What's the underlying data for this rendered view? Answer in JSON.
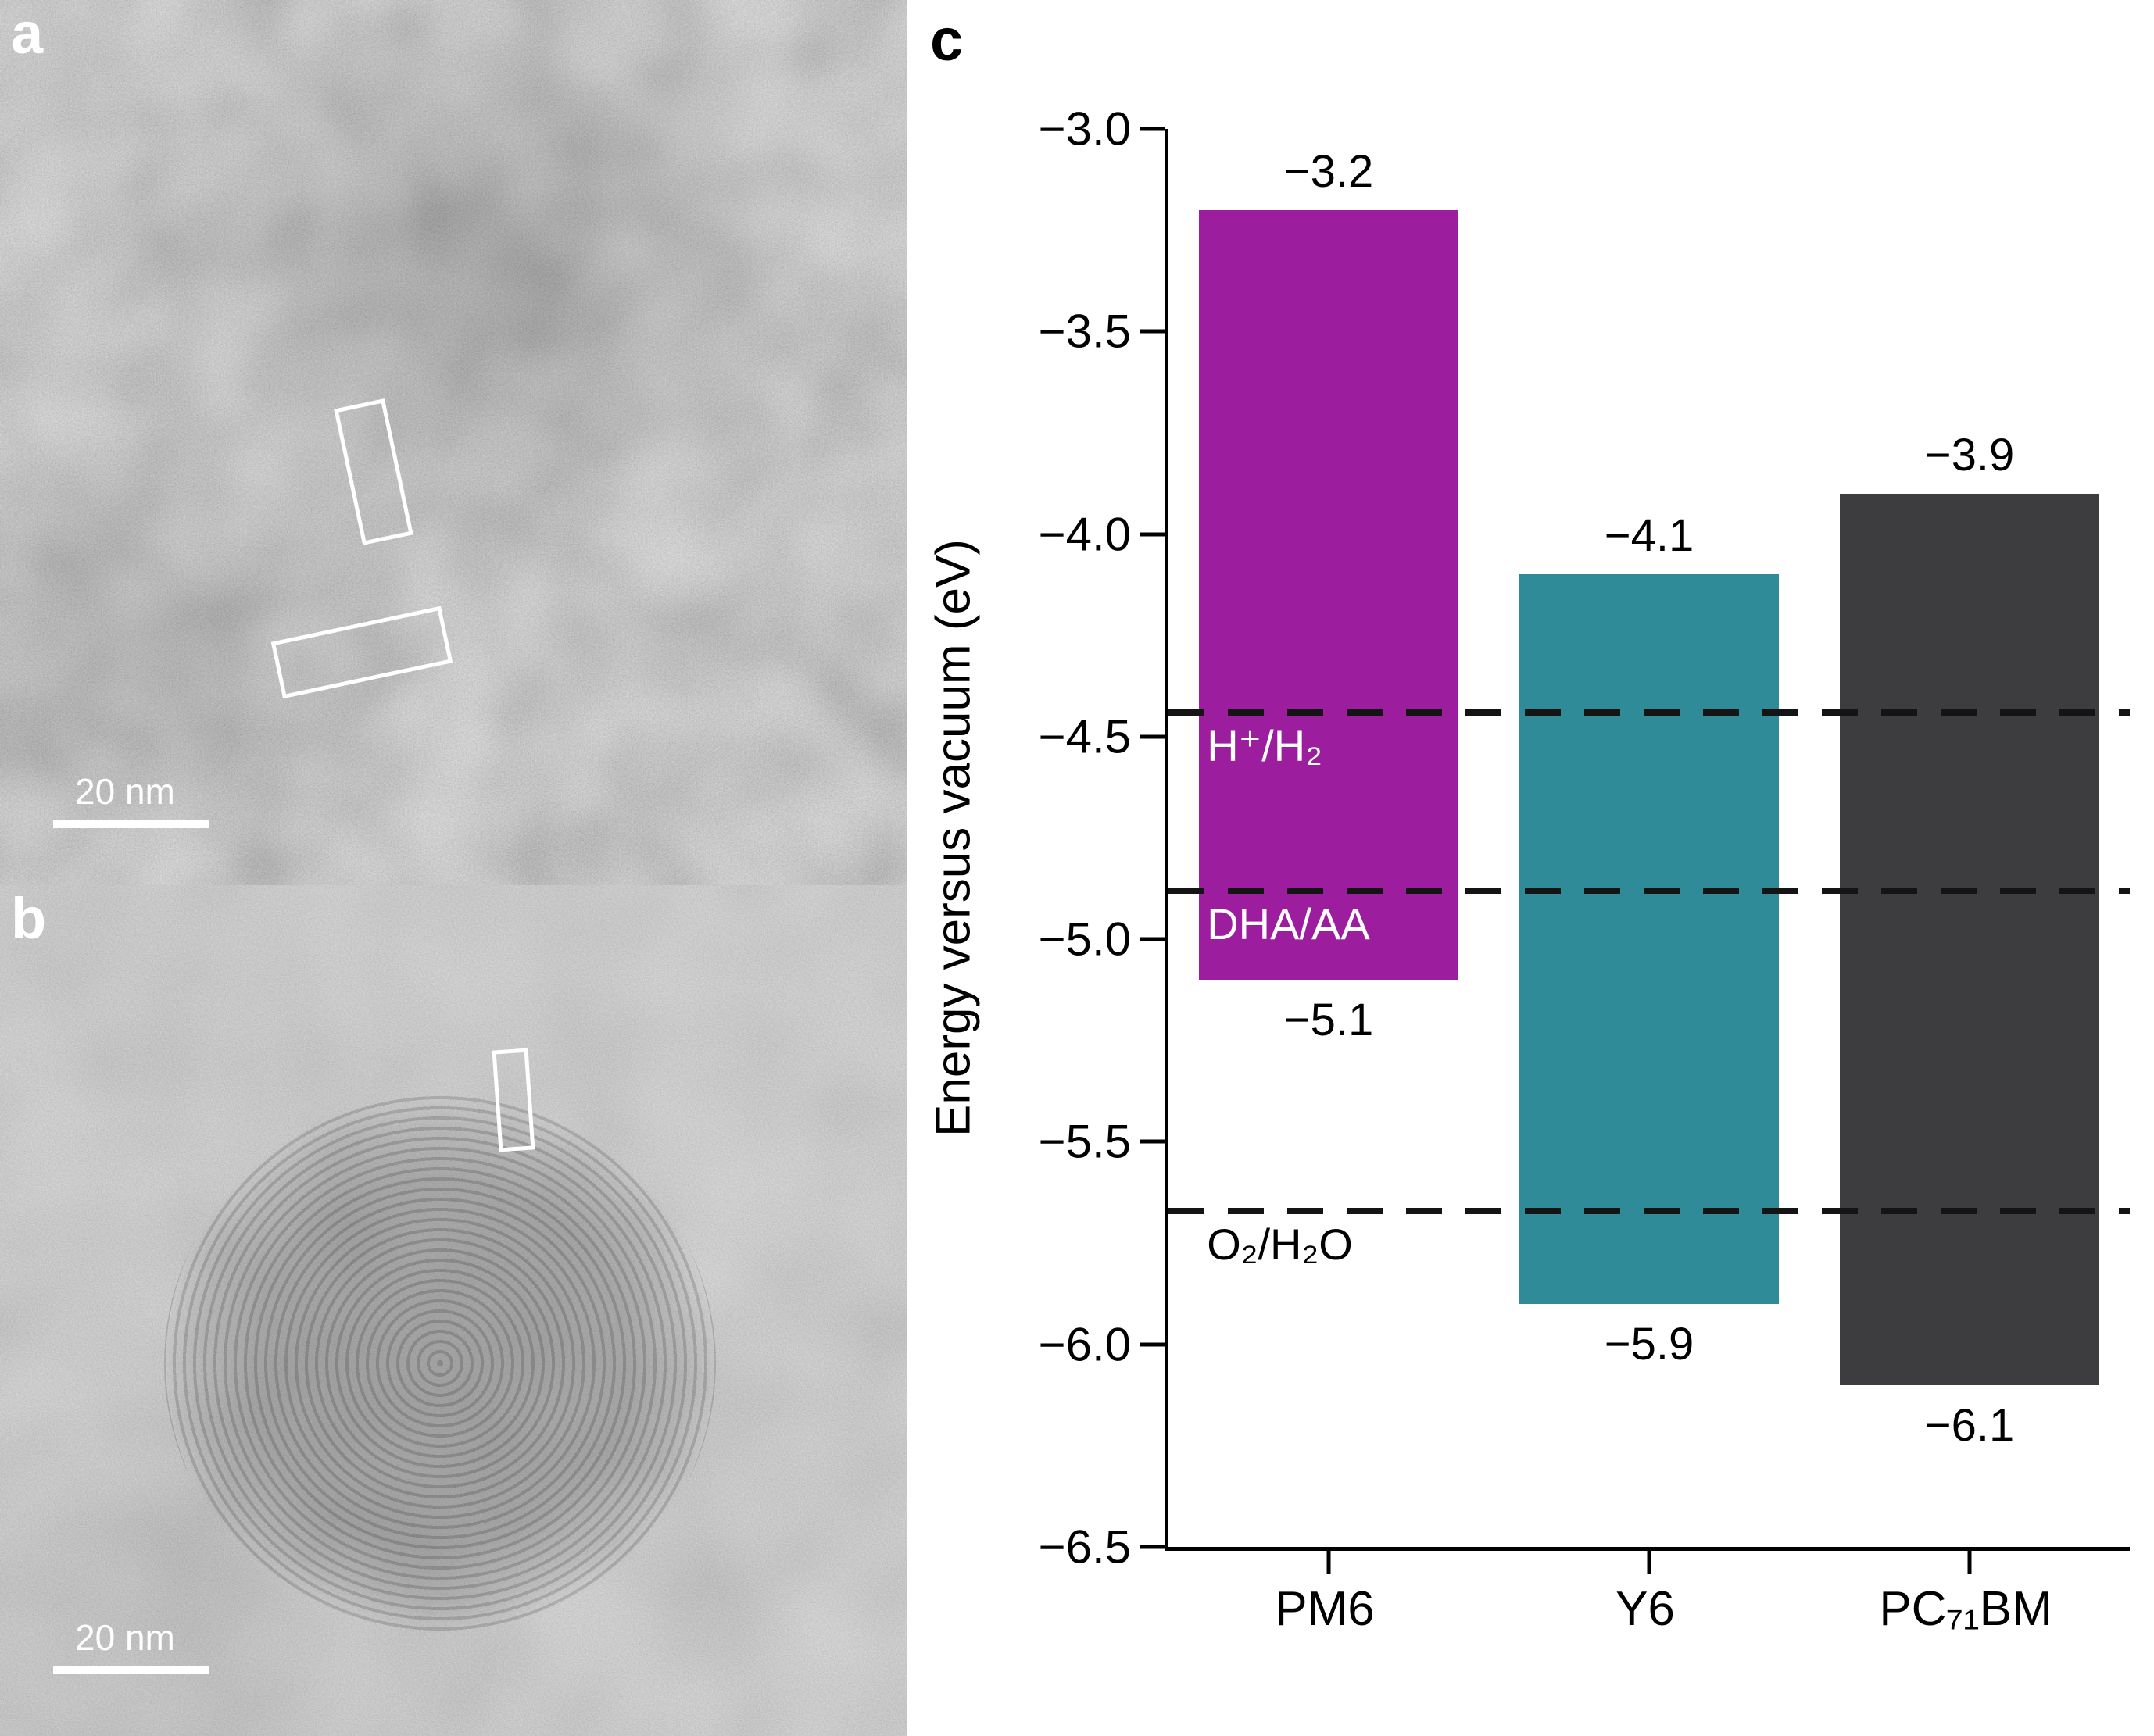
{
  "figure": {
    "panel_a": {
      "label": "a",
      "scale_bar_text": "20 nm"
    },
    "panel_b": {
      "label": "b",
      "scale_bar_text": "20 nm"
    },
    "panel_c": {
      "label": "c"
    }
  },
  "chart_data": {
    "type": "bar",
    "title": "",
    "ylabel": "Energy versus vacuum (eV)",
    "ylim": [
      -6.5,
      -3.0
    ],
    "y_ticks": [
      {
        "value": -3.0,
        "label": "−3.0"
      },
      {
        "value": -3.5,
        "label": "−3.5"
      },
      {
        "value": -4.0,
        "label": "−4.0"
      },
      {
        "value": -4.5,
        "label": "−4.5"
      },
      {
        "value": -5.0,
        "label": "−5.0"
      },
      {
        "value": -5.5,
        "label": "−5.5"
      },
      {
        "value": -6.0,
        "label": "−6.0"
      },
      {
        "value": -6.5,
        "label": "−6.5"
      }
    ],
    "categories": [
      "PM6",
      "Y6",
      "PC₇₁BM"
    ],
    "series": [
      {
        "name": "PM6",
        "top_energy": -3.2,
        "bottom_energy": -5.1,
        "top_label": "−3.2",
        "bottom_label": "−5.1",
        "color": "#9c1e9f"
      },
      {
        "name": "Y6",
        "top_energy": -4.1,
        "bottom_energy": -5.9,
        "top_label": "−4.1",
        "bottom_label": "−5.9",
        "color": "#2f8b97"
      },
      {
        "name": "PC₇₁BM",
        "top_energy": -3.9,
        "bottom_energy": -6.1,
        "top_label": "−3.9",
        "bottom_label": "−6.1",
        "color": "#3d3d40"
      }
    ],
    "reference_lines": [
      {
        "value": -4.44,
        "label": "H⁺/H₂",
        "label_color": "#ffffff"
      },
      {
        "value": -4.88,
        "label": "DHA/AA",
        "label_color": "#ffffff"
      },
      {
        "value": -5.67,
        "label": "O₂/H₂O",
        "label_color": "#000000"
      }
    ]
  }
}
